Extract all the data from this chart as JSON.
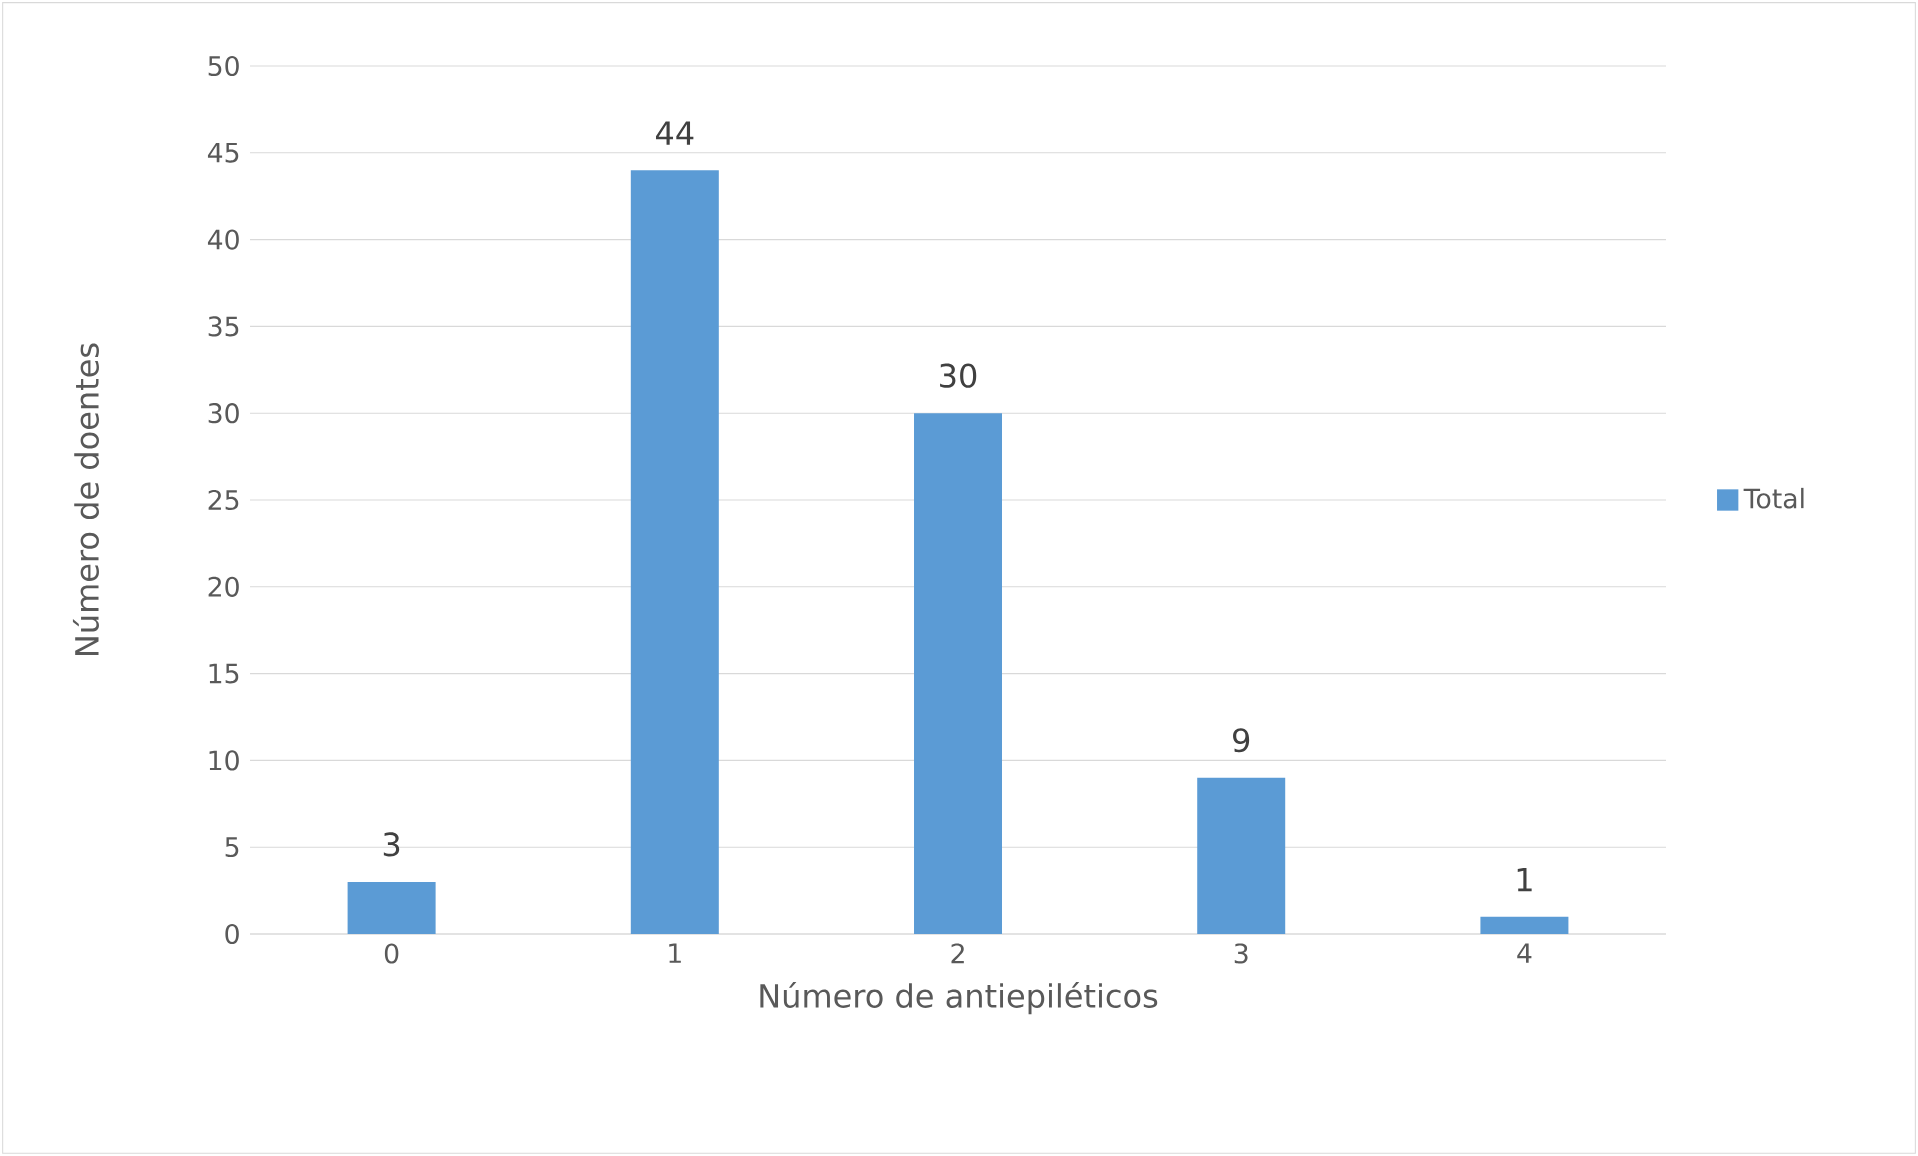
{
  "chart_data": {
    "type": "bar",
    "xlabel": "Número de antiepiléticos",
    "ylabel": "Número de doentes",
    "categories": [
      "0",
      "1",
      "2",
      "3",
      "4"
    ],
    "series": [
      {
        "name": "Total",
        "color": "#5b9bd5",
        "values": [
          3,
          44,
          30,
          9,
          1
        ]
      }
    ],
    "ylim": [
      0,
      50
    ],
    "yticks": [
      0,
      5,
      10,
      15,
      20,
      25,
      30,
      35,
      40,
      45,
      50
    ],
    "grid": "y",
    "legend": "right",
    "data_labels": true
  }
}
